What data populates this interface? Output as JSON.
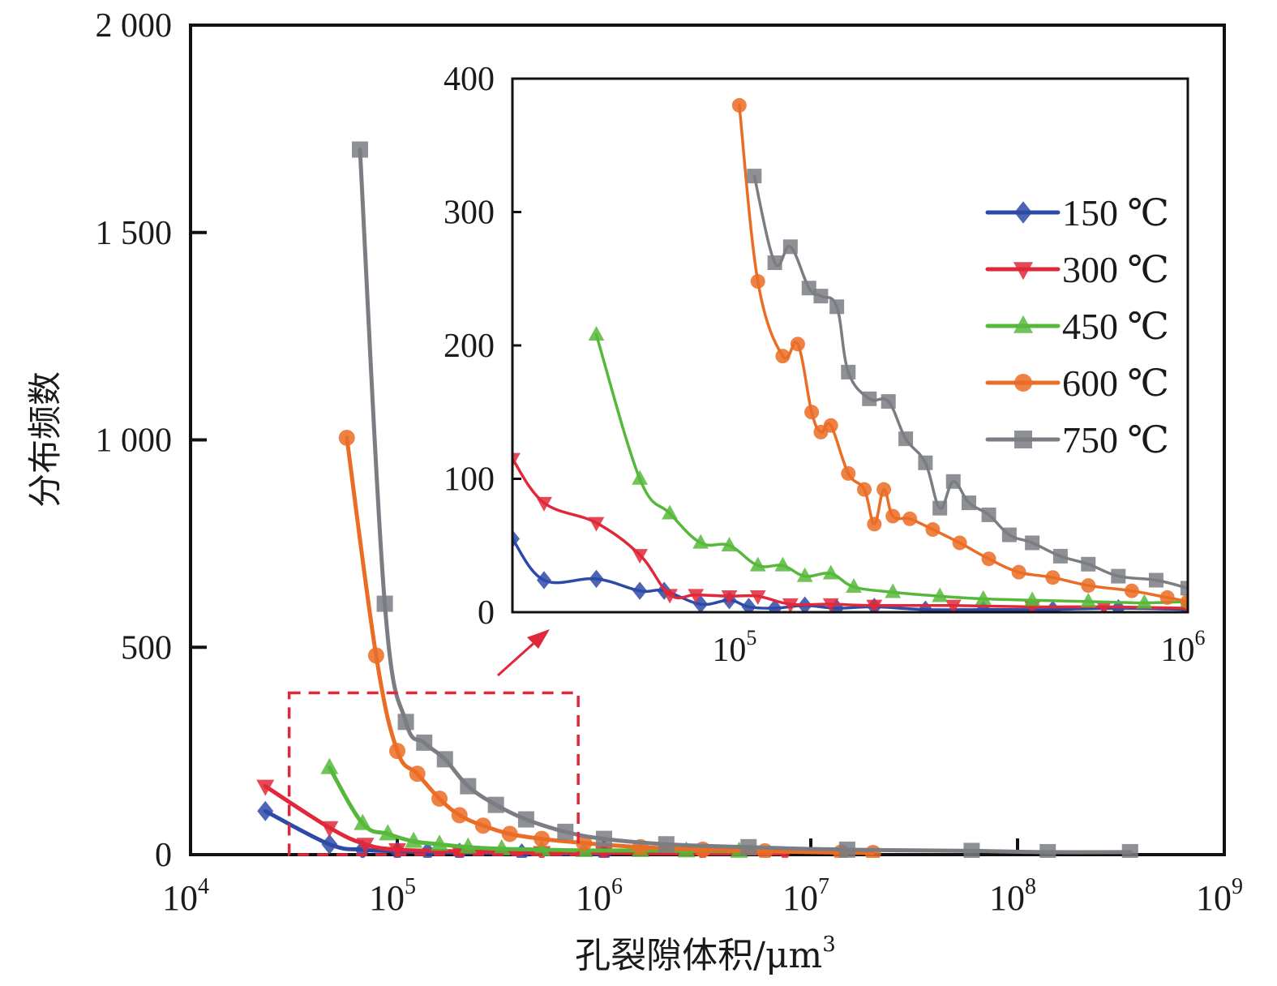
{
  "chart_data": [
    {
      "id": "main",
      "type": "line",
      "title": "",
      "xlabel": "孔裂隙体积/μm",
      "xlabel_superscript": "3",
      "ylabel": "分布频数",
      "xscale": "log",
      "xlim": [
        10000,
        1000000000
      ],
      "ylim": [
        0,
        2000
      ],
      "grid": false,
      "x_ticks": [
        {
          "base": "10",
          "exp": "4",
          "value": 10000
        },
        {
          "base": "10",
          "exp": "5",
          "value": 100000
        },
        {
          "base": "10",
          "exp": "6",
          "value": 1000000
        },
        {
          "base": "10",
          "exp": "7",
          "value": 10000000
        },
        {
          "base": "10",
          "exp": "8",
          "value": 100000000
        },
        {
          "base": "10",
          "exp": "9",
          "value": 1000000000
        }
      ],
      "y_ticks": [
        {
          "label": "0",
          "value": 0
        },
        {
          "label": "500",
          "value": 500
        },
        {
          "label": "1 000",
          "value": 1000
        },
        {
          "label": "1 500",
          "value": 1500
        },
        {
          "label": "2 000",
          "value": 2000
        }
      ],
      "zoom_box": {
        "x_range": [
          30000,
          750000
        ],
        "y_range": [
          0,
          390
        ],
        "color": "#e0283a",
        "style": "dashed"
      },
      "series": [
        {
          "name": "150 ℃",
          "color": "#2e4aa8",
          "marker": "diamond",
          "x": [
            23000,
            47000,
            68000,
            100000,
            140000,
            200000,
            400000,
            1000000
          ],
          "y": [
            105,
            25,
            12,
            8,
            6,
            5,
            3,
            2
          ]
        },
        {
          "name": "300 ℃",
          "color": "#e0283a",
          "marker": "triangle-down",
          "x": [
            23000,
            47000,
            70000,
            100000,
            200000,
            500000,
            1000000,
            3000000,
            7500000
          ],
          "y": [
            165,
            65,
            25,
            12,
            8,
            5,
            4,
            3,
            3
          ]
        },
        {
          "name": "450 ℃",
          "color": "#56b83a",
          "marker": "triangle-up",
          "x": [
            47000,
            68000,
            90000,
            120000,
            160000,
            220000,
            320000,
            500000,
            800000,
            1500000,
            2500000,
            4500000
          ],
          "y": [
            210,
            75,
            50,
            32,
            25,
            18,
            14,
            12,
            10,
            10,
            9,
            8
          ]
        },
        {
          "name": "600 ℃",
          "color": "#eb6c25",
          "marker": "circle",
          "x": [
            57000,
            79000,
            100000,
            125000,
            160000,
            200000,
            260000,
            350000,
            500000,
            800000,
            1500000,
            3000000,
            6000000,
            14000000,
            20000000
          ],
          "y": [
            1005,
            480,
            250,
            195,
            135,
            95,
            70,
            50,
            38,
            28,
            18,
            12,
            8,
            5,
            4
          ]
        },
        {
          "name": "750 ℃",
          "color": "#7a7d82",
          "marker": "square",
          "x": [
            66000,
            87000,
            110000,
            135000,
            170000,
            220000,
            300000,
            420000,
            650000,
            1000000,
            2000000,
            5000000,
            15000000,
            60000000,
            140000000,
            350000000
          ],
          "y": [
            1700,
            605,
            320,
            270,
            230,
            165,
            120,
            85,
            55,
            38,
            25,
            18,
            12,
            9,
            6,
            6
          ]
        }
      ]
    },
    {
      "id": "inset",
      "type": "line",
      "title": "",
      "xscale": "log",
      "xlim": [
        31200,
        1000000
      ],
      "ylim": [
        0,
        400
      ],
      "grid": false,
      "x_ticks": [
        {
          "base": "10",
          "exp": "5",
          "value": 100000
        },
        {
          "base": "10",
          "exp": "6",
          "value": 1000000
        }
      ],
      "y_ticks": [
        {
          "label": "0",
          "value": 0
        },
        {
          "label": "100",
          "value": 100
        },
        {
          "label": "200",
          "value": 200
        },
        {
          "label": "300",
          "value": 300
        },
        {
          "label": "400",
          "value": 400
        }
      ],
      "legend": {
        "position": "top-right",
        "entries": [
          "150 ℃",
          "300 ℃",
          "450 ℃",
          "600 ℃",
          "750 ℃"
        ]
      },
      "series": [
        {
          "name": "150 ℃",
          "color": "#2e4aa8",
          "marker": "diamond",
          "x": [
            31200,
            36700,
            48000,
            60000,
            68000,
            82000,
            95000,
            105000,
            120000,
            140000,
            165000,
            200000,
            260000,
            350000,
            500000,
            700000,
            1000000
          ],
          "y": [
            55,
            24,
            25,
            16,
            16,
            6,
            9,
            4,
            3,
            5,
            3,
            4,
            2,
            2,
            2,
            3,
            2
          ]
        },
        {
          "name": "300 ℃",
          "color": "#e0283a",
          "marker": "triangle-down",
          "x": [
            31200,
            36700,
            48000,
            60000,
            70000,
            80000,
            95000,
            110000,
            130000,
            160000,
            200000,
            300000,
            450000,
            650000,
            1000000
          ],
          "y": [
            115,
            82,
            67,
            43,
            13,
            13,
            12,
            12,
            6,
            6,
            5,
            5,
            4,
            4,
            3
          ]
        },
        {
          "name": "450 ℃",
          "color": "#56b83a",
          "marker": "triangle-up",
          "x": [
            48000,
            60000,
            70000,
            82000,
            95000,
            110000,
            125000,
            140000,
            160000,
            180000,
            220000,
            280000,
            350000,
            450000,
            600000,
            800000,
            1000000
          ],
          "y": [
            208,
            100,
            74,
            52,
            50,
            35,
            35,
            27,
            29,
            19,
            15,
            12,
            10,
            9,
            8,
            7,
            8
          ]
        },
        {
          "name": "600 ℃",
          "color": "#eb6c25",
          "marker": "circle",
          "x": [
            100000,
            110000,
            125000,
            135000,
            145000,
            152000,
            160000,
            175000,
            190000,
            200000,
            210000,
            220000,
            240000,
            270000,
            310000,
            360000,
            420000,
            500000,
            600000,
            750000,
            900000,
            1000000
          ],
          "y": [
            380,
            248,
            192,
            201,
            150,
            135,
            140,
            104,
            92,
            66,
            92,
            72,
            70,
            62,
            52,
            40,
            30,
            26,
            20,
            16,
            11,
            8
          ]
        },
        {
          "name": "750 ℃",
          "color": "#7a7d82",
          "marker": "square",
          "x": [
            108000,
            120000,
            130000,
            143000,
            152000,
            165000,
            175000,
            195000,
            215000,
            235000,
            260000,
            280000,
            300000,
            325000,
            360000,
            400000,
            450000,
            520000,
            600000,
            700000,
            850000,
            1000000
          ],
          "y": [
            327,
            262,
            274,
            243,
            237,
            229,
            180,
            160,
            158,
            130,
            112,
            78,
            98,
            82,
            73,
            58,
            52,
            42,
            36,
            27,
            24,
            18
          ]
        }
      ]
    }
  ]
}
